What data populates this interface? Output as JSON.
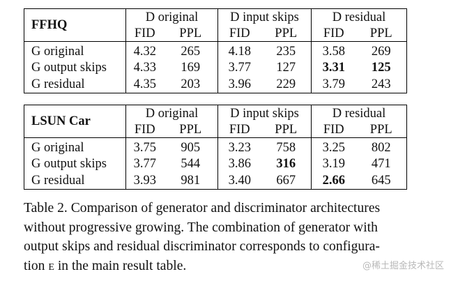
{
  "tables": [
    {
      "dataset": "FFHQ",
      "groups": [
        "D original",
        "D input skips",
        "D residual"
      ],
      "metrics": [
        "FID",
        "PPL"
      ],
      "rows": [
        {
          "label": "G original",
          "values": [
            "4.32",
            "265",
            "4.18",
            "235",
            "3.58",
            "269"
          ],
          "bold": []
        },
        {
          "label": "G output skips",
          "values": [
            "4.33",
            "169",
            "3.77",
            "127",
            "3.31",
            "125"
          ],
          "bold": [
            4,
            5
          ]
        },
        {
          "label": "G residual",
          "values": [
            "4.35",
            "203",
            "3.96",
            "229",
            "3.79",
            "243"
          ],
          "bold": []
        }
      ]
    },
    {
      "dataset": "LSUN Car",
      "groups": [
        "D original",
        "D input skips",
        "D residual"
      ],
      "metrics": [
        "FID",
        "PPL"
      ],
      "rows": [
        {
          "label": "G original",
          "values": [
            "3.75",
            "905",
            "3.23",
            "758",
            "3.25",
            "802"
          ],
          "bold": []
        },
        {
          "label": "G output skips",
          "values": [
            "3.77",
            "544",
            "3.86",
            "316",
            "3.19",
            "471"
          ],
          "bold": [
            3
          ]
        },
        {
          "label": "G residual",
          "values": [
            "3.93",
            "981",
            "3.40",
            "667",
            "2.66",
            "645"
          ],
          "bold": [
            4
          ]
        }
      ]
    }
  ],
  "caption": {
    "line1": "Table 2.  Comparison of generator and discriminator architectures",
    "line2": "without progressive growing.  The combination of generator with",
    "line3": "output skips and residual discriminator corresponds to configura-",
    "line4_pre": "tion ",
    "line4_code": "E",
    "line4_post": " in the main result table."
  },
  "watermark": "@稀土掘金技术社区"
}
